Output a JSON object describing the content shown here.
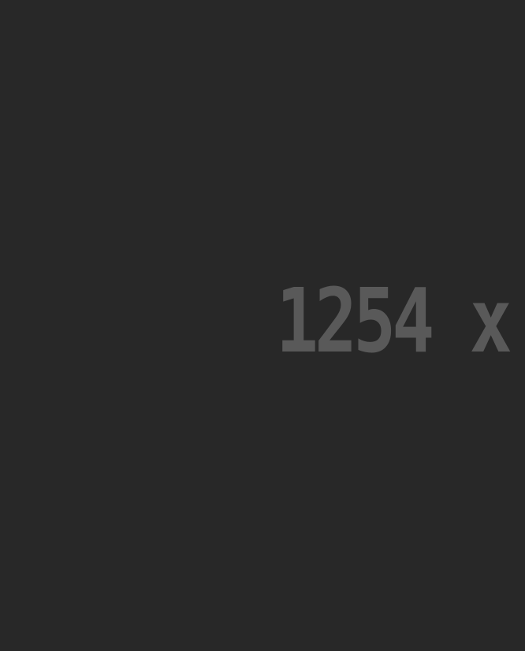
{
  "placeholder": {
    "text": "1254 x",
    "text_color": "#595959",
    "background_color": "#282828"
  }
}
